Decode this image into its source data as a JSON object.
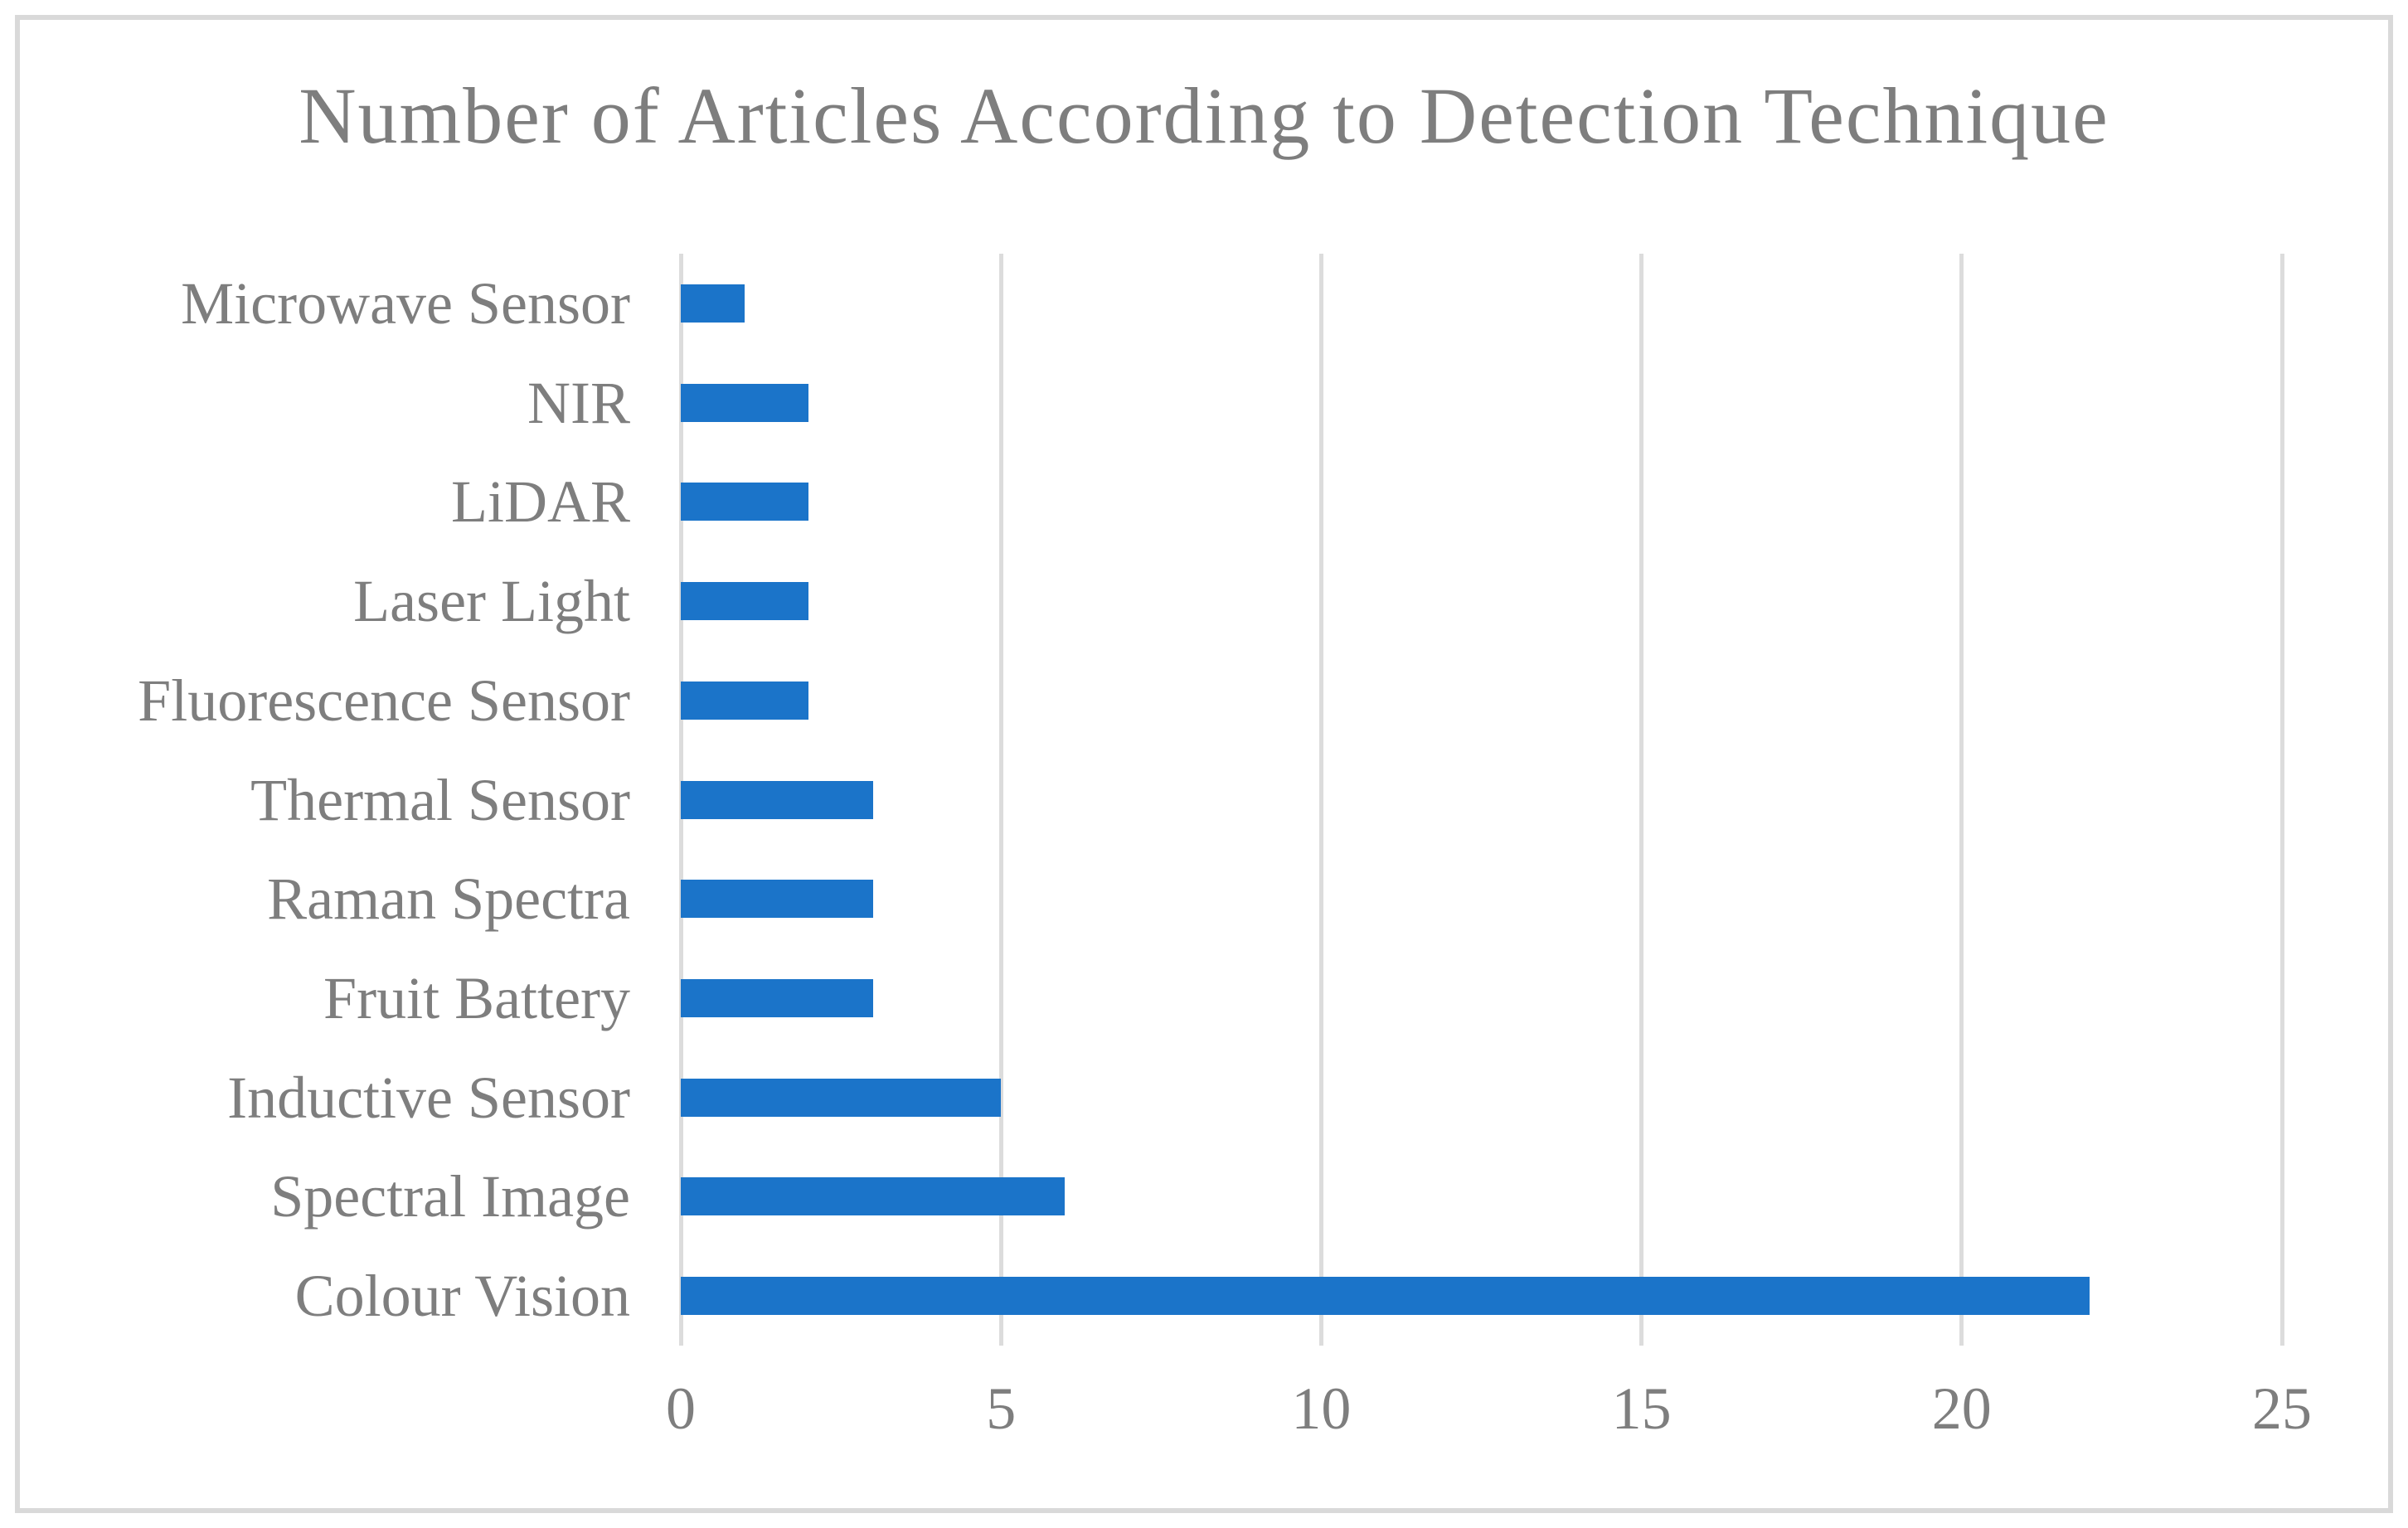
{
  "figure": {
    "background": "#ffffff",
    "border_color": "#d9d9d9"
  },
  "chart_data": {
    "type": "bar",
    "orientation": "horizontal",
    "title": "Number of Articles According to Detection Technique",
    "categories": [
      "Microwave Sensor",
      "NIR",
      "LiDAR",
      "Laser Light",
      "Fluorescence Sensor",
      "Thermal Sensor",
      "Raman Spectra",
      "Fruit Battery",
      "Inductive Sensor",
      "Spectral Image",
      "Colour Vision"
    ],
    "values": [
      1,
      2,
      2,
      2,
      2,
      3,
      3,
      3,
      5,
      6,
      22
    ],
    "category_order": "top-to-bottom",
    "xlabel": "",
    "ylabel": "",
    "xlim": [
      0,
      25
    ],
    "xticks": [
      0,
      5,
      10,
      15,
      20,
      25
    ],
    "grid": "vertical-only",
    "legend": "none",
    "bar_color": "#1b74c9",
    "text_color": "#7e7e7e",
    "gridline_color": "#dcdcdc"
  }
}
